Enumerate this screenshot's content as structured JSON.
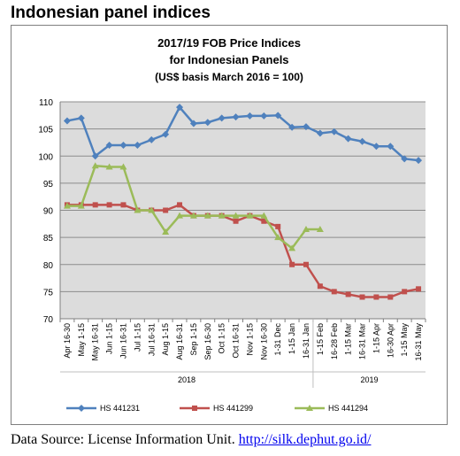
{
  "page": {
    "heading": "Indonesian panel indices",
    "source_label": "Data Source: License Information Unit.",
    "source_link": "http://silk.dephut.go.id/"
  },
  "chart_data": {
    "type": "line",
    "title_lines": [
      "2017/19 FOB Price Indices",
      "for Indonesian Panels",
      "(US$ basis March 2016 = 100)"
    ],
    "ylim": [
      70,
      110
    ],
    "yticks": [
      70,
      75,
      80,
      85,
      90,
      95,
      100,
      105,
      110
    ],
    "grid": true,
    "legend_position": "bottom",
    "categories": [
      "Apr 16-30",
      "May 1-15",
      "May 16-31",
      "Jun 1-15",
      "Jun 16-31",
      "Jul 1-15",
      "Jul 16-31",
      "Aug 1-15",
      "Aug 16-31",
      "Sep 1-15",
      "Sep 16-30",
      "Oct 1-15",
      "Oct 16-31",
      "Nov 1-15",
      "Nov 16-30",
      "1-31 Dec",
      "1-15 Jan",
      "16-31 Jan",
      "1-15 Feb",
      "16-28 Feb",
      "1-15 Mar",
      "16-31 Mar",
      "1-15 Apr",
      "16-30 Apr",
      "1-15 May",
      "16-31 May"
    ],
    "year_groups": [
      {
        "label": "2018",
        "start": 0,
        "end": 17
      },
      {
        "label": "2019",
        "start": 18,
        "end": 25
      }
    ],
    "series": [
      {
        "name": "HS 441231",
        "color": "#4f81bd",
        "marker": "diamond",
        "values": [
          106.5,
          107,
          100,
          102,
          102,
          102,
          103,
          104,
          109,
          106,
          106.2,
          107,
          107.2,
          107.4,
          107.4,
          107.5,
          105.3,
          105.4,
          104.2,
          104.5,
          103.2,
          102.7,
          101.8,
          101.8,
          99.5,
          99.2
        ]
      },
      {
        "name": "HS 441299",
        "color": "#c0504d",
        "marker": "square",
        "values": [
          91,
          91,
          91,
          91,
          91,
          90,
          90,
          90,
          91,
          89,
          89,
          89,
          88,
          89,
          88,
          87,
          80,
          80,
          76,
          75,
          74.5,
          74,
          74,
          74,
          75,
          75.5
        ]
      },
      {
        "name": "HS 441294",
        "color": "#9bbb59",
        "marker": "triangle",
        "values": [
          90.8,
          90.8,
          98.2,
          98,
          98,
          90,
          90,
          86,
          89,
          89,
          89,
          89,
          89,
          89,
          89,
          85,
          83,
          86.5,
          86.5,
          null,
          null,
          null,
          null,
          null,
          null,
          null
        ]
      }
    ]
  }
}
